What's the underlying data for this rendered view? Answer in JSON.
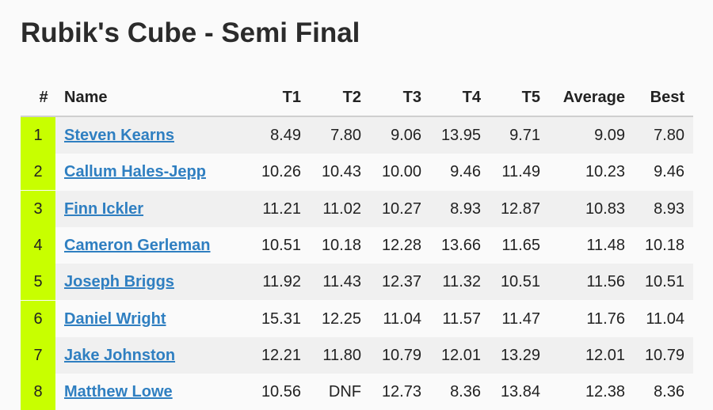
{
  "title": "Rubik's Cube - Semi Final",
  "table": {
    "headers": [
      "#",
      "Name",
      "T1",
      "T2",
      "T3",
      "T4",
      "T5",
      "Average",
      "Best"
    ],
    "rows": [
      [
        "1",
        "Steven Kearns",
        "8.49",
        "7.80",
        "9.06",
        "13.95",
        "9.71",
        "9.09",
        "7.80"
      ],
      [
        "2",
        "Callum Hales-Jepp",
        "10.26",
        "10.43",
        "10.00",
        "9.46",
        "11.49",
        "10.23",
        "9.46"
      ],
      [
        "3",
        "Finn Ickler",
        "11.21",
        "11.02",
        "10.27",
        "8.93",
        "12.87",
        "10.83",
        "8.93"
      ],
      [
        "4",
        "Cameron Gerleman",
        "10.51",
        "10.18",
        "12.28",
        "13.66",
        "11.65",
        "11.48",
        "10.18"
      ],
      [
        "5",
        "Joseph Briggs",
        "11.92",
        "11.43",
        "12.37",
        "11.32",
        "10.51",
        "11.56",
        "10.51"
      ],
      [
        "6",
        "Daniel Wright",
        "15.31",
        "12.25",
        "11.04",
        "11.57",
        "11.47",
        "11.76",
        "11.04"
      ],
      [
        "7",
        "Jake Johnston",
        "12.21",
        "11.80",
        "10.79",
        "12.01",
        "13.29",
        "12.01",
        "10.79"
      ],
      [
        "8",
        "Matthew Lowe",
        "10.56",
        "DNF",
        "12.73",
        "8.36",
        "13.84",
        "12.38",
        "8.36"
      ]
    ]
  }
}
